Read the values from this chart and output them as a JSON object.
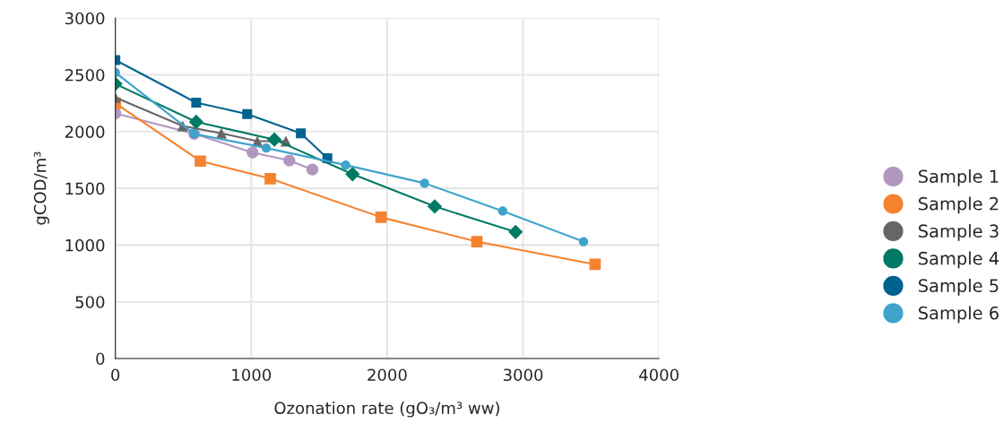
{
  "chart_data": {
    "type": "line",
    "xlabel": "Ozonation rate (gO₃/m³ ww)",
    "ylabel": "gCOD/m³",
    "xlim": [
      0,
      4000
    ],
    "xticks": [
      0,
      1000,
      2000,
      3000,
      4000
    ],
    "ylim": [
      0,
      3000
    ],
    "yticks": [
      0,
      500,
      1000,
      1500,
      2000,
      2500,
      3000
    ],
    "grid": true,
    "legend": "right",
    "series": [
      {
        "name": "Sample 1",
        "color": "#b197c0",
        "marker": "circle",
        "x": [
          0,
          580,
          1010,
          1280,
          1450
        ],
        "values": [
          2160,
          1980,
          1815,
          1745,
          1665
        ]
      },
      {
        "name": "Sample 2",
        "color": "#f5822e",
        "marker": "square",
        "x": [
          0,
          625,
          1140,
          1955,
          2660,
          3530
        ],
        "values": [
          2250,
          1740,
          1585,
          1245,
          1030,
          830
        ]
      },
      {
        "name": "Sample 3",
        "color": "#666666",
        "marker": "triangle",
        "x": [
          0,
          495,
          780,
          1045,
          1255
        ],
        "values": [
          2300,
          2050,
          1985,
          1915,
          1915
        ]
      },
      {
        "name": "Sample 4",
        "color": "#007a64",
        "marker": "diamond",
        "x": [
          0,
          595,
          1170,
          1745,
          2350,
          2945
        ],
        "values": [
          2420,
          2085,
          1930,
          1625,
          1340,
          1115
        ]
      },
      {
        "name": "Sample 5",
        "color": "#00628f",
        "marker": "square",
        "x": [
          0,
          595,
          970,
          1365,
          1560
        ],
        "values": [
          2630,
          2255,
          2155,
          1985,
          1765
        ]
      },
      {
        "name": "Sample 6",
        "color": "#3fa3cc",
        "marker": "circle",
        "x": [
          0,
          580,
          1110,
          1695,
          2275,
          2850,
          3445
        ],
        "values": [
          2520,
          1980,
          1855,
          1705,
          1545,
          1300,
          1030
        ]
      }
    ]
  }
}
